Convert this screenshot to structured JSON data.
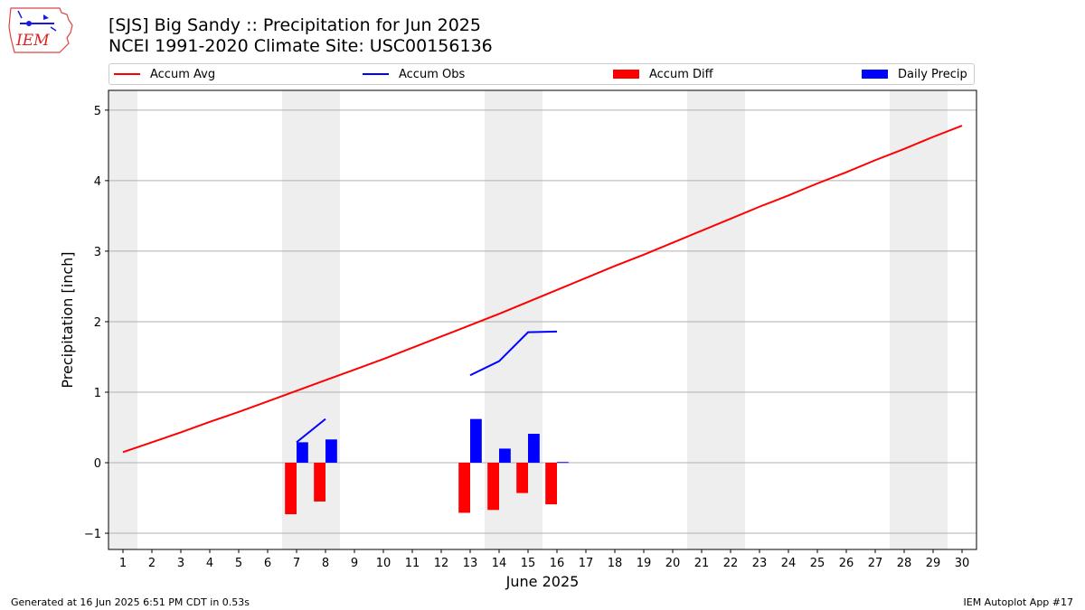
{
  "header": {
    "logo_text": "IEM",
    "title_line1": "[SJS] Big Sandy :: Precipitation for Jun 2025",
    "title_line2": "NCEI 1991-2020 Climate Site: USC00156136"
  },
  "legend": {
    "items": [
      {
        "label": "Accum Avg",
        "kind": "line",
        "color": "#ff0000"
      },
      {
        "label": "Accum Obs",
        "kind": "line",
        "color": "#0000ff"
      },
      {
        "label": "Accum Diff",
        "kind": "patch",
        "color": "#ff0000"
      },
      {
        "label": "Daily Precip",
        "kind": "patch",
        "color": "#0000ff"
      }
    ]
  },
  "footer": {
    "left": "Generated at 16 Jun 2025 6:51 PM CDT in 0.53s",
    "right": "IEM Autoplot App #17"
  },
  "chart_data": {
    "type": "bar",
    "xlabel": "June 2025",
    "ylabel": "Precipitation [inch]",
    "xlim": [
      0.5,
      30.5
    ],
    "ylim": [
      -1.23,
      5.28
    ],
    "x_ticks": [
      1,
      2,
      3,
      4,
      5,
      6,
      7,
      8,
      9,
      10,
      11,
      12,
      13,
      14,
      15,
      16,
      17,
      18,
      19,
      20,
      21,
      22,
      23,
      24,
      25,
      26,
      27,
      28,
      29,
      30
    ],
    "y_ticks": [
      -1,
      0,
      1,
      2,
      3,
      4,
      5
    ],
    "grid": "horizontal",
    "weekend_shading": [
      [
        0.5,
        1.5
      ],
      [
        6.5,
        8.5
      ],
      [
        13.5,
        15.5
      ],
      [
        20.5,
        22.5
      ],
      [
        27.5,
        29.5
      ]
    ],
    "colors": {
      "avg": "#ff0000",
      "obs": "#0000ff",
      "diff": "#ff0000",
      "daily": "#0000ff",
      "shade": "#eeeeee",
      "grid": "#b0b0b0"
    },
    "series": [
      {
        "name": "Accum Avg",
        "kind": "line",
        "x": [
          1,
          2,
          3,
          4,
          5,
          6,
          7,
          8,
          9,
          10,
          11,
          12,
          13,
          14,
          15,
          16,
          17,
          18,
          19,
          20,
          21,
          22,
          23,
          24,
          25,
          26,
          27,
          28,
          29,
          30
        ],
        "values": [
          0.15,
          0.29,
          0.43,
          0.58,
          0.72,
          0.87,
          1.02,
          1.17,
          1.32,
          1.47,
          1.63,
          1.79,
          1.95,
          2.11,
          2.28,
          2.45,
          2.62,
          2.79,
          2.95,
          3.12,
          3.29,
          3.46,
          3.63,
          3.79,
          3.96,
          4.12,
          4.29,
          4.45,
          4.62,
          4.78
        ]
      },
      {
        "name": "Accum Obs",
        "kind": "line",
        "segments": [
          {
            "x": [
              7,
              8
            ],
            "values": [
              0.29,
              0.62
            ]
          },
          {
            "x": [
              13,
              14,
              15,
              16
            ],
            "values": [
              1.24,
              1.44,
              1.85,
              1.86
            ]
          }
        ]
      },
      {
        "name": "Accum Diff",
        "kind": "bar",
        "x": [
          7,
          8,
          13,
          14,
          15,
          16
        ],
        "values": [
          -0.73,
          -0.55,
          -0.71,
          -0.67,
          -0.43,
          -0.59
        ]
      },
      {
        "name": "Daily Precip",
        "kind": "bar",
        "x": [
          7,
          8,
          13,
          14,
          15,
          16
        ],
        "values": [
          0.29,
          0.33,
          0.62,
          0.2,
          0.41,
          0.01
        ]
      }
    ]
  }
}
